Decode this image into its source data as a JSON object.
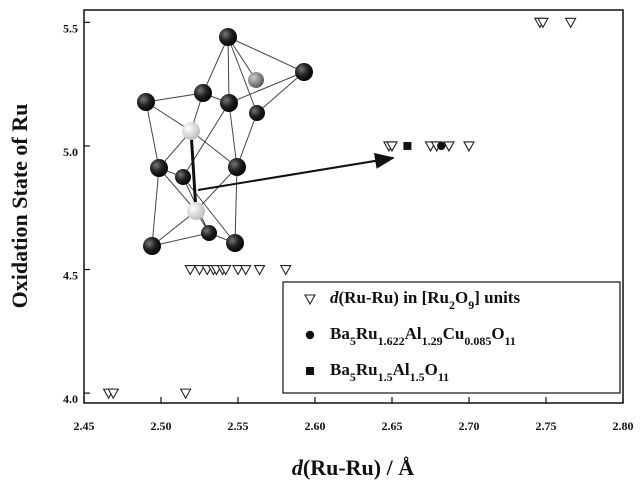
{
  "chart_data": {
    "type": "scatter",
    "xlabel": "d(Ru-Ru) / Å",
    "ylabel": "Oxidation State of Ru",
    "xlim": [
      2.45,
      2.8
    ],
    "ylim": [
      3.96,
      5.55
    ],
    "xticks": [
      2.45,
      {
        "value": 2.5,
        "label": "2.50"
      },
      2.55,
      {
        "value": 2.6,
        "label": "2.60"
      },
      2.65,
      {
        "value": 2.7,
        "label": "2.70"
      },
      2.75,
      {
        "value": 2.8,
        "label": "2.80"
      }
    ],
    "yticks": [
      {
        "value": 4,
        "label": "4.0"
      },
      4.5,
      {
        "value": 5,
        "label": "5.0"
      },
      5.5
    ],
    "grid": false,
    "legend": "lower right",
    "series": [
      {
        "name": "d(Ru-Ru) in [Ru2O9] units",
        "marker": "open-triangle-down",
        "color": "#222222",
        "x": [
          2.746,
          2.748,
          2.766,
          2.648,
          2.65,
          2.675,
          2.679,
          2.687,
          2.7,
          2.519,
          2.525,
          2.53,
          2.534,
          2.536,
          2.54,
          2.542,
          2.55,
          2.555,
          2.564,
          2.581,
          2.466,
          2.469,
          2.516
        ],
        "values": [
          5.5,
          5.5,
          5.5,
          5,
          5,
          5,
          5,
          5,
          5,
          4.5,
          4.5,
          4.5,
          4.5,
          4.5,
          4.5,
          4.5,
          4.5,
          4.5,
          4.5,
          4.5,
          4,
          4,
          4
        ]
      },
      {
        "name": "Ba5Ru1.622Al1.29Cu0.085O11",
        "marker": "circle",
        "color": "#111111",
        "x": [
          2.682
        ],
        "values": [
          5
        ]
      },
      {
        "name": "Ba5Ru1.5Al1.5O11",
        "marker": "square",
        "color": "#111111",
        "x": [
          2.66
        ],
        "values": [
          5
        ]
      }
    ]
  }
}
